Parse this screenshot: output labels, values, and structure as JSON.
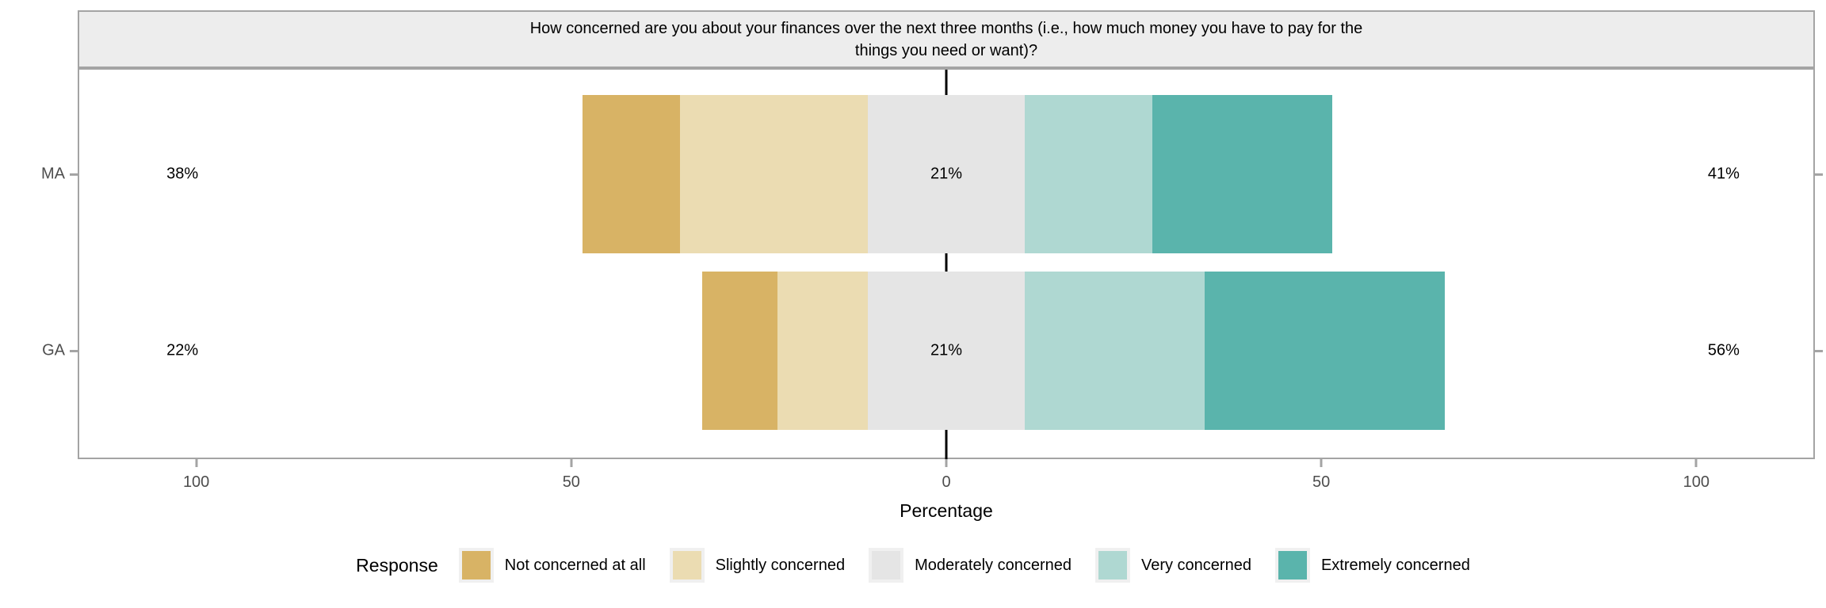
{
  "chart_data": {
    "type": "diverging_stacked_bar",
    "title": "How concerned are you about your finances over the next three months (i.e., how much money you have to pay for the things you need or want)?",
    "title_lines": [
      "How concerned are you about your finances over the next three months (i.e., how much money you have to pay for the",
      "things you need or want)?"
    ],
    "categories": [
      "MA",
      "GA"
    ],
    "series": [
      {
        "name": "Not concerned at all",
        "color": "#D8B365",
        "values": [
          13,
          10
        ]
      },
      {
        "name": "Slightly concerned",
        "color": "#EBDCB2",
        "values": [
          25,
          12
        ]
      },
      {
        "name": "Moderately concerned",
        "color": "#E5E5E5",
        "values": [
          21,
          21
        ]
      },
      {
        "name": "Very concerned",
        "color": "#AFD8D2",
        "values": [
          17,
          24
        ]
      },
      {
        "name": "Extremely concerned",
        "color": "#5AB4AC",
        "values": [
          24,
          32
        ]
      }
    ],
    "row_summary_labels": [
      {
        "left": "38%",
        "center": "21%",
        "right": "41%"
      },
      {
        "left": "22%",
        "center": "21%",
        "right": "56%"
      }
    ],
    "xlabel": "Percentage",
    "x_ticks": [
      {
        "value": -100,
        "label": "100"
      },
      {
        "value": -50,
        "label": "50"
      },
      {
        "value": 0,
        "label": "0"
      },
      {
        "value": 50,
        "label": "50"
      },
      {
        "value": 100,
        "label": "100"
      }
    ],
    "xlim": [
      -115.6,
      115.6
    ],
    "legend_title": "Response",
    "legend_position": "bottom",
    "grid": false,
    "colors": {
      "panel_border": "#A4A4A4",
      "strip_bg": "#EDEDED",
      "axis_text": "#4D4D4D",
      "center_line": "#000000"
    }
  }
}
